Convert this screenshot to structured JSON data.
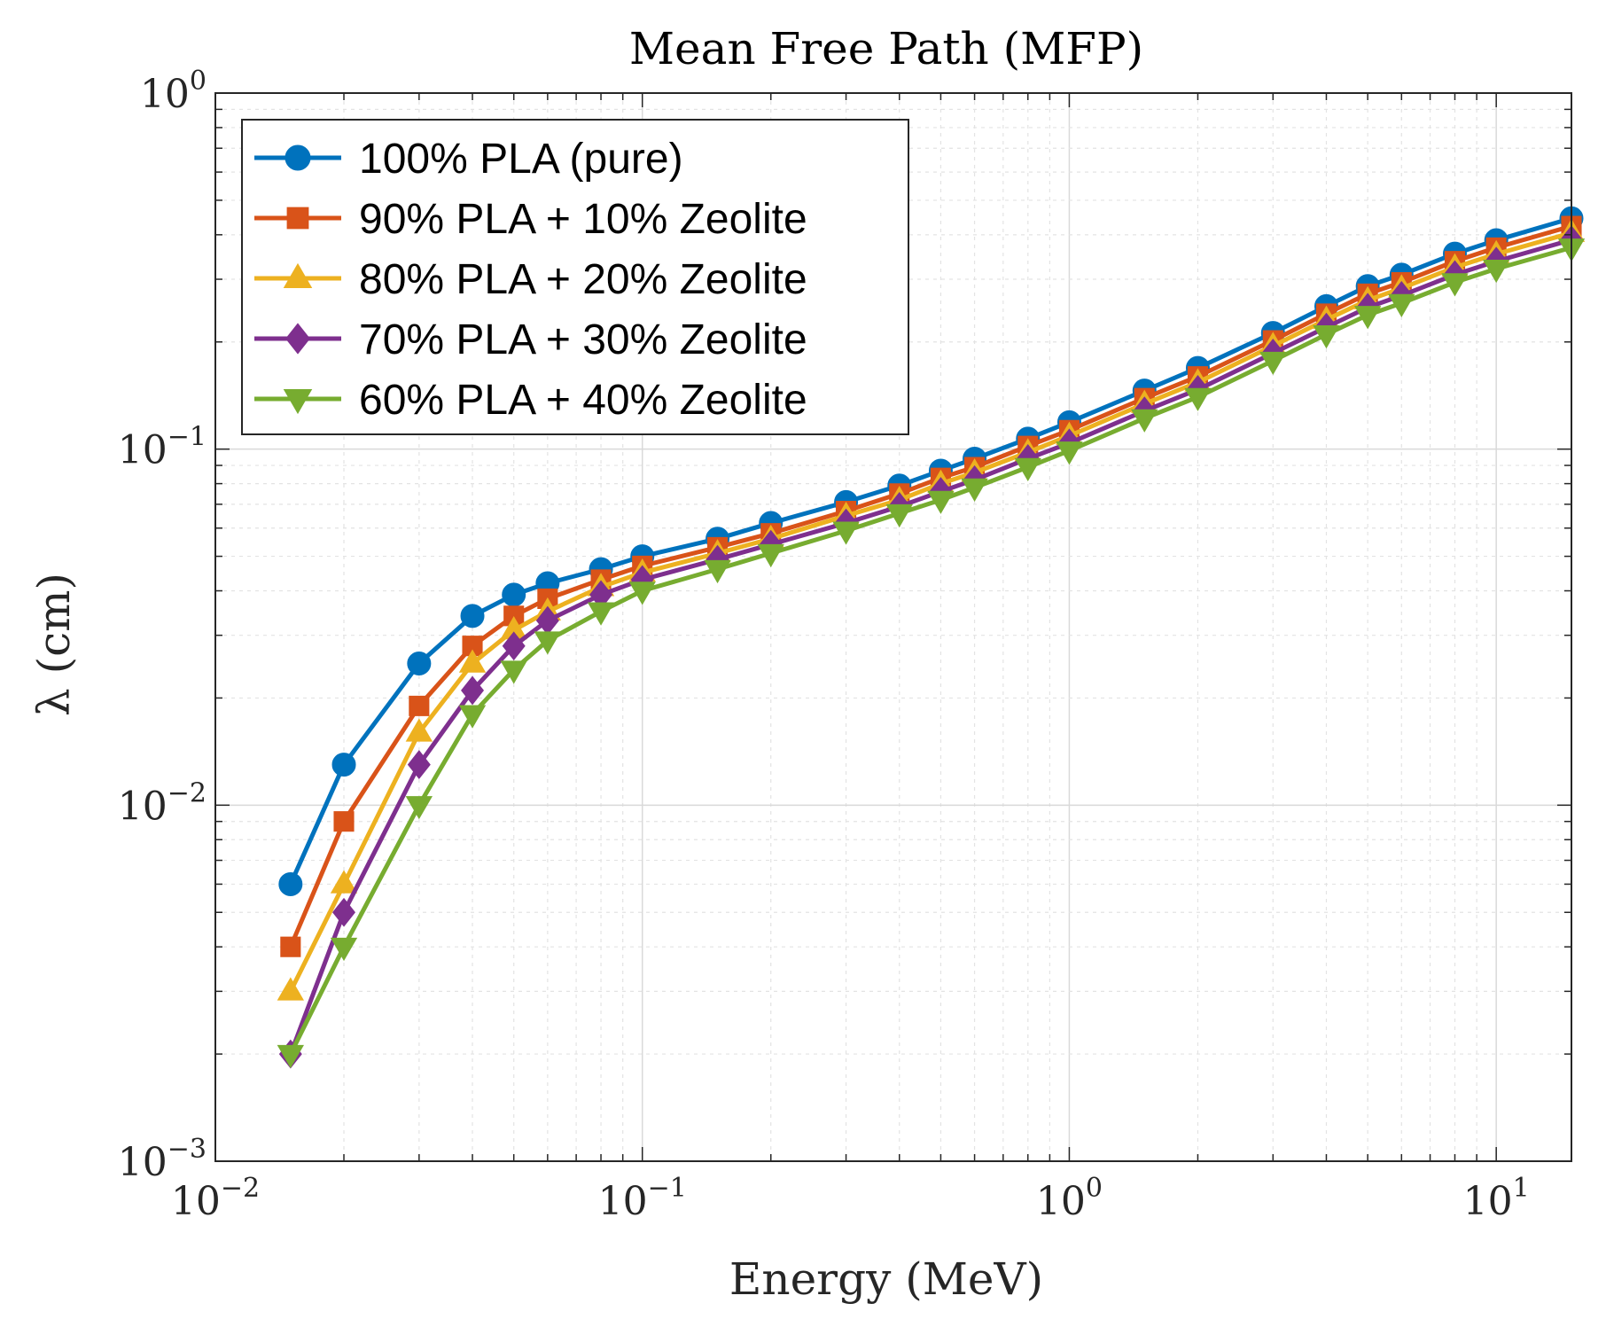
{
  "chart_data": {
    "type": "line",
    "title": "Mean Free Path (MFP)",
    "xlabel": "Energy (MeV)",
    "ylabel": "λ (cm)",
    "xscale": "log",
    "yscale": "log",
    "xlim": [
      0.01,
      15
    ],
    "ylim": [
      0.001,
      1
    ],
    "grid": true,
    "legend_position": "top-left",
    "x_ticks": [
      {
        "base": "10",
        "exp": "−2"
      },
      {
        "base": "10",
        "exp": "−1"
      },
      {
        "base": "10",
        "exp": "0"
      },
      {
        "base": "10",
        "exp": "1"
      }
    ],
    "y_ticks": [
      {
        "base": "10",
        "exp": "−3"
      },
      {
        "base": "10",
        "exp": "−2"
      },
      {
        "base": "10",
        "exp": "−1"
      },
      {
        "base": "10",
        "exp": "0"
      }
    ],
    "x": [
      0.015,
      0.02,
      0.03,
      0.04,
      0.05,
      0.06,
      0.08,
      0.1,
      0.15,
      0.2,
      0.3,
      0.4,
      0.5,
      0.6,
      0.8,
      1.0,
      1.5,
      2,
      3,
      4,
      5,
      6,
      8,
      10,
      15
    ],
    "series": [
      {
        "name": "100% PLA (pure)",
        "color": "#0072BD",
        "marker": "circle",
        "values": [
          0.006,
          0.013,
          0.025,
          0.034,
          0.039,
          0.042,
          0.046,
          0.05,
          0.056,
          0.062,
          0.071,
          0.079,
          0.087,
          0.094,
          0.107,
          0.119,
          0.146,
          0.169,
          0.212,
          0.252,
          0.287,
          0.309,
          0.354,
          0.386,
          0.445
        ]
      },
      {
        "name": "90% PLA + 10% Zeolite",
        "color": "#D95319",
        "marker": "square",
        "values": [
          0.004,
          0.009,
          0.019,
          0.028,
          0.034,
          0.038,
          0.043,
          0.047,
          0.053,
          0.058,
          0.067,
          0.075,
          0.083,
          0.089,
          0.102,
          0.113,
          0.139,
          0.16,
          0.202,
          0.24,
          0.273,
          0.294,
          0.337,
          0.368,
          0.423
        ]
      },
      {
        "name": "80% PLA + 20% Zeolite",
        "color": "#EDB120",
        "marker": "triangle-up",
        "values": [
          0.003,
          0.006,
          0.016,
          0.025,
          0.031,
          0.035,
          0.041,
          0.045,
          0.051,
          0.056,
          0.065,
          0.072,
          0.08,
          0.086,
          0.098,
          0.109,
          0.134,
          0.154,
          0.195,
          0.231,
          0.262,
          0.283,
          0.324,
          0.353,
          0.405
        ]
      },
      {
        "name": "70% PLA + 30% Zeolite",
        "color": "#7E2F8E",
        "marker": "diamond",
        "values": [
          0.002,
          0.005,
          0.013,
          0.021,
          0.028,
          0.033,
          0.039,
          0.043,
          0.049,
          0.054,
          0.062,
          0.069,
          0.076,
          0.082,
          0.094,
          0.104,
          0.128,
          0.147,
          0.186,
          0.22,
          0.25,
          0.27,
          0.309,
          0.337,
          0.387
        ]
      },
      {
        "name": "60% PLA + 40% Zeolite",
        "color": "#77AC30",
        "marker": "triangle-down",
        "values": [
          0.002,
          0.004,
          0.01,
          0.018,
          0.024,
          0.029,
          0.035,
          0.04,
          0.046,
          0.051,
          0.059,
          0.066,
          0.072,
          0.078,
          0.089,
          0.099,
          0.122,
          0.14,
          0.177,
          0.21,
          0.238,
          0.257,
          0.294,
          0.321,
          0.368
        ]
      }
    ]
  }
}
